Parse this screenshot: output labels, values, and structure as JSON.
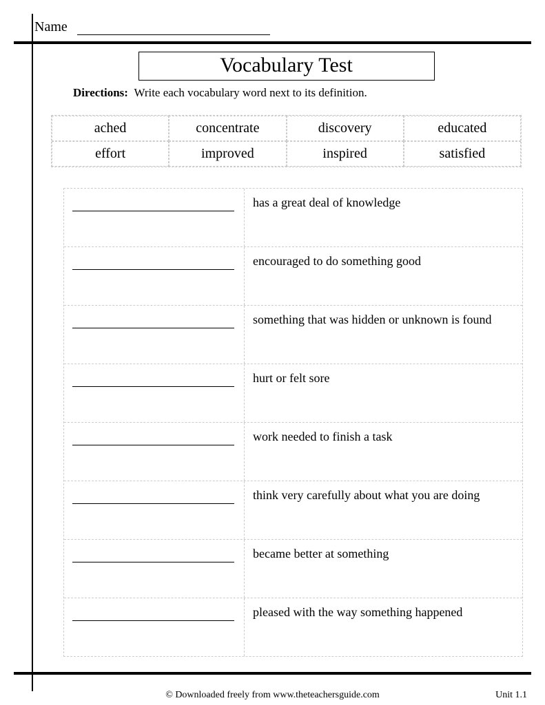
{
  "header": {
    "name_label": "Name"
  },
  "title": "Vocabulary Test",
  "directions_label": "Directions:",
  "directions_text": "Write each vocabulary word next to its definition.",
  "wordbank": [
    "ached",
    "concentrate",
    "discovery",
    "educated",
    "effort",
    "improved",
    "inspired",
    "satisfied"
  ],
  "definitions": [
    "has a great deal of knowledge",
    "encouraged to do something good",
    "something that was hidden or unknown is found",
    "hurt or felt sore",
    "work needed to finish a task",
    "think very carefully about what you are doing",
    "became better at something",
    "pleased with the way something happened"
  ],
  "footer": {
    "credit": "© Downloaded freely from www.theteachersguide.com",
    "unit": "Unit 1.1"
  },
  "colors": {
    "rule": "#000000",
    "dashed": "#cccccc",
    "background": "#ffffff",
    "text": "#000000"
  }
}
